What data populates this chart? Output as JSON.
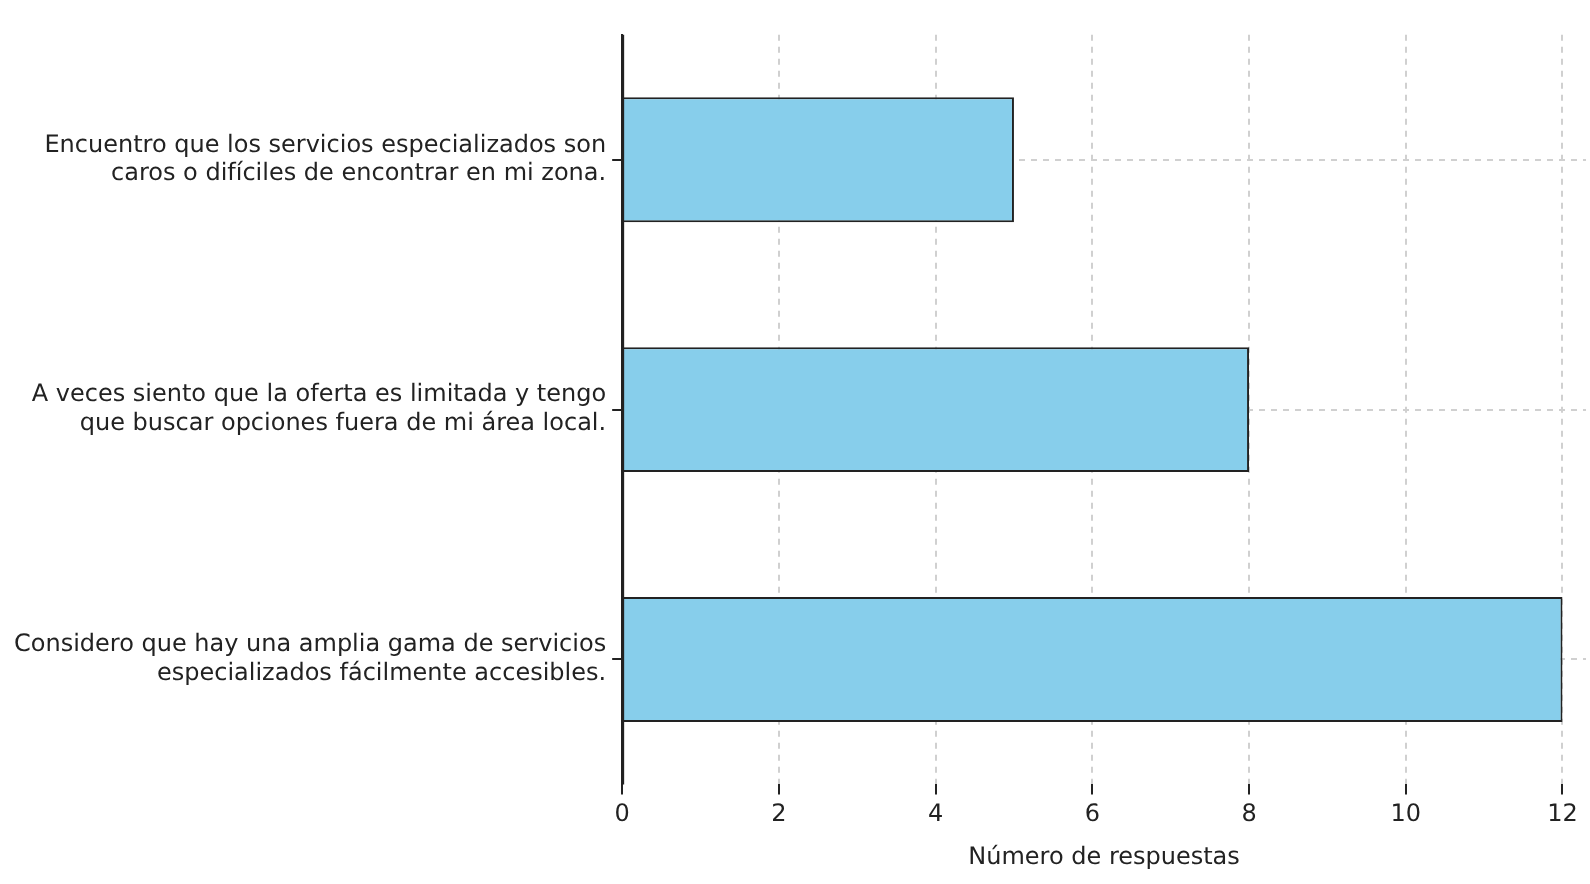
{
  "chart_data": {
    "type": "bar",
    "orientation": "horizontal",
    "categories": [
      "Encuentro que los servicios especializados son\ncaros o difíciles de encontrar en mi zona.",
      "A veces siento que la oferta es limitada y tengo\nque buscar opciones fuera de mi área local.",
      "Considero que hay una amplia gama de servicios\nespecializados fácilmente accesibles."
    ],
    "values": [
      5,
      8,
      12
    ],
    "color": "#87ceeb",
    "xlabel": "Número de respuestas",
    "xlim": [
      0,
      12.3
    ],
    "xticks": [
      0,
      2,
      4,
      6,
      8,
      10,
      12
    ],
    "grid": true
  }
}
